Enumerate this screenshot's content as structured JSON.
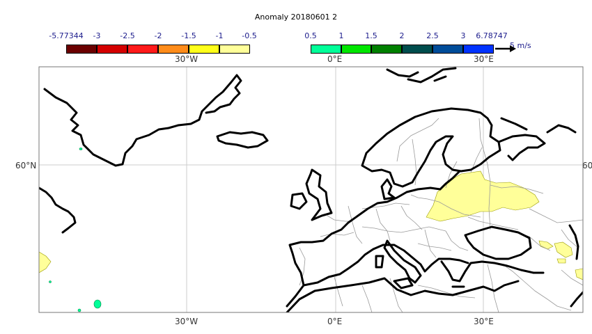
{
  "title": "Anomaly 20180601 2",
  "negative_scale": {
    "labels": [
      "-5.77344",
      "-3",
      "-2.5",
      "-2",
      "-1.5",
      "-1",
      "-0.5"
    ],
    "colors": [
      "#6b0000",
      "#d40000",
      "#ff1a1a",
      "#ff8c1a",
      "#ffff1a",
      "#ffff99"
    ]
  },
  "positive_scale": {
    "labels": [
      "0.5",
      "1",
      "1.5",
      "2",
      "2.5",
      "3",
      "6.78747"
    ],
    "colors": [
      "#00ff99",
      "#00e600",
      "#008000",
      "#004d4d",
      "#004c99",
      "#0033ff"
    ]
  },
  "reference_vector": "5 m/s",
  "lon_labels_top": [
    "30°W",
    "0°E",
    "30°E"
  ],
  "lon_labels_bottom": [
    "30°W",
    "0°E",
    "30°E"
  ],
  "lat_labels": {
    "left": "60°N",
    "right": "60"
  },
  "colors": {
    "anomaly_positive_fill": "#ffff99",
    "anomaly_green_fill": "#00ff99",
    "coastline": "#000000",
    "border": "#999999",
    "grid": "#cccccc"
  }
}
